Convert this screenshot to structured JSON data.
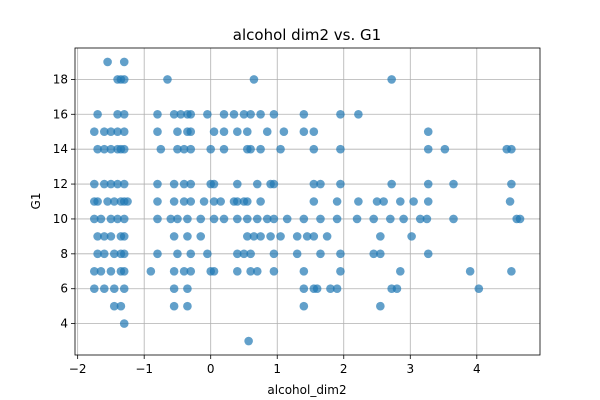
{
  "chart_data": {
    "type": "scatter",
    "title": "alcohol dim2 vs. G1",
    "xlabel": "alcohol_dim2",
    "ylabel": "G1",
    "xlim": [
      -2.04,
      4.95
    ],
    "ylim": [
      2.2,
      19.8
    ],
    "xticks": [
      -2,
      -1,
      0,
      1,
      2,
      3,
      4
    ],
    "yticks": [
      4,
      6,
      8,
      10,
      12,
      14,
      16,
      18
    ],
    "grid": true,
    "marker_color": "#1f77b4",
    "marker_alpha": 0.7,
    "x": [
      -1.55,
      -1.3,
      -1.4,
      -1.35,
      -1.3,
      -0.65,
      0.65,
      2.72,
      -1.7,
      -1.4,
      -1.3,
      -0.8,
      -0.55,
      -0.45,
      -0.35,
      -0.3,
      -0.05,
      0.2,
      0.35,
      0.5,
      0.6,
      0.75,
      0.95,
      1.4,
      1.95,
      2.22,
      -1.75,
      -1.6,
      -1.5,
      -1.4,
      -1.3,
      -0.8,
      -0.5,
      -0.35,
      -0.3,
      0.05,
      0.2,
      0.4,
      0.55,
      0.85,
      1.1,
      1.4,
      1.55,
      3.27,
      -1.7,
      -1.6,
      -1.5,
      -1.4,
      -1.35,
      -1.3,
      -0.75,
      -0.5,
      -0.4,
      -0.3,
      0.0,
      0.2,
      0.55,
      0.6,
      0.75,
      1.05,
      1.55,
      1.95,
      3.27,
      3.52,
      4.45,
      4.52,
      -1.75,
      -1.6,
      -1.5,
      -1.4,
      -1.3,
      -0.8,
      -0.55,
      -0.4,
      -0.3,
      0.0,
      0.05,
      0.4,
      0.7,
      0.9,
      0.95,
      1.55,
      1.65,
      1.95,
      2.72,
      3.27,
      3.65,
      4.52,
      -1.75,
      -1.7,
      -1.55,
      -1.45,
      -1.35,
      -1.3,
      -1.25,
      -0.8,
      -0.55,
      -0.4,
      -0.3,
      -0.1,
      0.05,
      0.15,
      0.35,
      0.4,
      0.5,
      0.55,
      0.75,
      1.55,
      1.9,
      2.22,
      2.5,
      2.6,
      2.85,
      3.05,
      3.27,
      4.5,
      -1.75,
      -1.65,
      -1.5,
      -1.4,
      -1.3,
      -0.8,
      -0.6,
      -0.5,
      -0.35,
      -0.15,
      0.05,
      0.2,
      0.4,
      0.55,
      0.7,
      0.85,
      0.95,
      1.15,
      1.4,
      1.65,
      1.9,
      2.2,
      2.45,
      2.7,
      2.9,
      3.15,
      3.25,
      3.65,
      4.6,
      4.65,
      -1.7,
      -1.6,
      -1.5,
      -1.35,
      -1.3,
      -0.55,
      -0.35,
      -0.15,
      0.55,
      0.65,
      0.75,
      0.9,
      1.05,
      1.3,
      1.45,
      1.55,
      1.75,
      2.55,
      3.02,
      -1.7,
      -1.6,
      -1.45,
      -1.35,
      -1.3,
      -0.8,
      -0.5,
      -0.3,
      -0.05,
      0.4,
      0.5,
      0.6,
      0.95,
      1.3,
      1.65,
      1.95,
      2.45,
      2.55,
      3.27,
      -1.75,
      -1.65,
      -1.5,
      -1.35,
      -1.3,
      -0.9,
      -0.55,
      -0.4,
      -0.3,
      0.0,
      0.05,
      0.4,
      0.6,
      0.7,
      0.95,
      1.4,
      1.95,
      2.85,
      3.9,
      4.52,
      -1.75,
      -1.6,
      -1.45,
      -1.3,
      -0.55,
      -0.35,
      1.4,
      1.55,
      1.6,
      1.8,
      1.9,
      2.72,
      2.8,
      4.03,
      -1.45,
      -1.35,
      -0.55,
      -0.35,
      1.4,
      2.55,
      -1.3,
      0.57
    ],
    "y": [
      19,
      19,
      18,
      18,
      18,
      18,
      18,
      18,
      16,
      16,
      16,
      16,
      16,
      16,
      16,
      16,
      16,
      16,
      16,
      16,
      16,
      16,
      16,
      16,
      16,
      16,
      15,
      15,
      15,
      15,
      15,
      15,
      15,
      15,
      15,
      15,
      15,
      15,
      15,
      15,
      15,
      15,
      15,
      15,
      14,
      14,
      14,
      14,
      14,
      14,
      14,
      14,
      14,
      14,
      14,
      14,
      14,
      14,
      14,
      14,
      14,
      14,
      14,
      14,
      14,
      14,
      12,
      12,
      12,
      12,
      12,
      12,
      12,
      12,
      12,
      12,
      12,
      12,
      12,
      12,
      12,
      12,
      12,
      12,
      12,
      12,
      12,
      12,
      11,
      11,
      11,
      11,
      11,
      11,
      11,
      11,
      11,
      11,
      11,
      11,
      11,
      11,
      11,
      11,
      11,
      11,
      11,
      11,
      11,
      11,
      11,
      11,
      11,
      11,
      11,
      11,
      10,
      10,
      10,
      10,
      10,
      10,
      10,
      10,
      10,
      10,
      10,
      10,
      10,
      10,
      10,
      10,
      10,
      10,
      10,
      10,
      10,
      10,
      10,
      10,
      10,
      10,
      10,
      10,
      10,
      10,
      9,
      9,
      9,
      9,
      9,
      9,
      9,
      9,
      9,
      9,
      9,
      9,
      9,
      9,
      9,
      9,
      9,
      9,
      9,
      8,
      8,
      8,
      8,
      8,
      8,
      8,
      8,
      8,
      8,
      8,
      8,
      8,
      8,
      8,
      8,
      8,
      8,
      8,
      7,
      7,
      7,
      7,
      7,
      7,
      7,
      7,
      7,
      7,
      7,
      7,
      7,
      7,
      7,
      7,
      7,
      7,
      7,
      7,
      6,
      6,
      6,
      6,
      6,
      6,
      6,
      6,
      6,
      6,
      6,
      6,
      6,
      6,
      5,
      5,
      5,
      5,
      5,
      5,
      4,
      3
    ]
  }
}
